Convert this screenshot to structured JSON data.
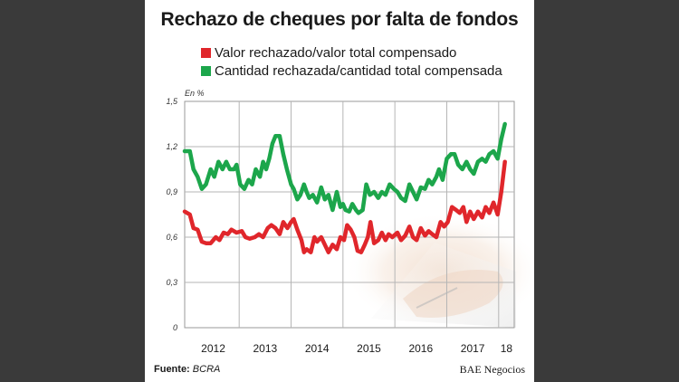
{
  "chart_data": {
    "type": "line",
    "title": "Rechazo de cheques por falta de fondos",
    "ylabel": "En %",
    "ylim": [
      0,
      1.5
    ],
    "yticks": [
      "0",
      "0,3",
      "0,6",
      "0,9",
      "1,2",
      "1,5"
    ],
    "xticks": [
      "2012",
      "2013",
      "2014",
      "2015",
      "2016",
      "2017",
      "18"
    ],
    "xlim": [
      2011.95,
      2018.3
    ],
    "grid": true,
    "legend_position": "top",
    "series": [
      {
        "name": "Valor rechazado/valor total compensado",
        "color": "#e0262b",
        "points": [
          [
            2011.95,
            0.77
          ],
          [
            2012.05,
            0.75
          ],
          [
            2012.12,
            0.66
          ],
          [
            2012.2,
            0.65
          ],
          [
            2012.28,
            0.57
          ],
          [
            2012.36,
            0.56
          ],
          [
            2012.45,
            0.56
          ],
          [
            2012.55,
            0.6
          ],
          [
            2012.62,
            0.58
          ],
          [
            2012.7,
            0.63
          ],
          [
            2012.78,
            0.62
          ],
          [
            2012.85,
            0.65
          ],
          [
            2012.95,
            0.63
          ],
          [
            2013.05,
            0.64
          ],
          [
            2013.12,
            0.6
          ],
          [
            2013.2,
            0.59
          ],
          [
            2013.3,
            0.6
          ],
          [
            2013.38,
            0.62
          ],
          [
            2013.46,
            0.6
          ],
          [
            2013.55,
            0.66
          ],
          [
            2013.62,
            0.68
          ],
          [
            2013.7,
            0.66
          ],
          [
            2013.78,
            0.62
          ],
          [
            2013.85,
            0.7
          ],
          [
            2013.93,
            0.66
          ],
          [
            2014.0,
            0.7
          ],
          [
            2014.05,
            0.72
          ],
          [
            2014.12,
            0.65
          ],
          [
            2014.2,
            0.58
          ],
          [
            2014.25,
            0.5
          ],
          [
            2014.3,
            0.52
          ],
          [
            2014.38,
            0.5
          ],
          [
            2014.45,
            0.6
          ],
          [
            2014.5,
            0.57
          ],
          [
            2014.58,
            0.6
          ],
          [
            2014.65,
            0.55
          ],
          [
            2014.72,
            0.5
          ],
          [
            2014.8,
            0.55
          ],
          [
            2014.88,
            0.52
          ],
          [
            2014.95,
            0.6
          ],
          [
            2015.02,
            0.58
          ],
          [
            2015.08,
            0.68
          ],
          [
            2015.15,
            0.65
          ],
          [
            2015.22,
            0.6
          ],
          [
            2015.28,
            0.51
          ],
          [
            2015.35,
            0.5
          ],
          [
            2015.42,
            0.55
          ],
          [
            2015.48,
            0.6
          ],
          [
            2015.53,
            0.7
          ],
          [
            2015.6,
            0.56
          ],
          [
            2015.68,
            0.58
          ],
          [
            2015.75,
            0.63
          ],
          [
            2015.82,
            0.58
          ],
          [
            2015.88,
            0.62
          ],
          [
            2015.95,
            0.6
          ],
          [
            2016.05,
            0.63
          ],
          [
            2016.12,
            0.58
          ],
          [
            2016.2,
            0.61
          ],
          [
            2016.28,
            0.67
          ],
          [
            2016.35,
            0.6
          ],
          [
            2016.42,
            0.58
          ],
          [
            2016.5,
            0.66
          ],
          [
            2016.58,
            0.61
          ],
          [
            2016.65,
            0.64
          ],
          [
            2016.72,
            0.62
          ],
          [
            2016.8,
            0.6
          ],
          [
            2016.88,
            0.7
          ],
          [
            2016.95,
            0.67
          ],
          [
            2017.02,
            0.7
          ],
          [
            2017.1,
            0.8
          ],
          [
            2017.18,
            0.78
          ],
          [
            2017.25,
            0.76
          ],
          [
            2017.32,
            0.8
          ],
          [
            2017.38,
            0.7
          ],
          [
            2017.45,
            0.77
          ],
          [
            2017.52,
            0.72
          ],
          [
            2017.6,
            0.77
          ],
          [
            2017.68,
            0.73
          ],
          [
            2017.75,
            0.8
          ],
          [
            2017.82,
            0.76
          ],
          [
            2017.9,
            0.83
          ],
          [
            2017.98,
            0.75
          ],
          [
            2018.05,
            0.9
          ],
          [
            2018.12,
            1.1
          ]
        ]
      },
      {
        "name": "Cantidad rechazada/cantidad total compensada",
        "color": "#1ca64b",
        "points": [
          [
            2011.95,
            1.17
          ],
          [
            2012.05,
            1.17
          ],
          [
            2012.12,
            1.05
          ],
          [
            2012.2,
            1.0
          ],
          [
            2012.28,
            0.92
          ],
          [
            2012.36,
            0.95
          ],
          [
            2012.45,
            1.05
          ],
          [
            2012.52,
            1.0
          ],
          [
            2012.6,
            1.1
          ],
          [
            2012.68,
            1.05
          ],
          [
            2012.75,
            1.1
          ],
          [
            2012.82,
            1.05
          ],
          [
            2012.9,
            1.05
          ],
          [
            2012.95,
            1.08
          ],
          [
            2013.02,
            0.95
          ],
          [
            2013.1,
            0.92
          ],
          [
            2013.18,
            0.98
          ],
          [
            2013.25,
            0.95
          ],
          [
            2013.32,
            1.05
          ],
          [
            2013.4,
            1.0
          ],
          [
            2013.46,
            1.1
          ],
          [
            2013.52,
            1.05
          ],
          [
            2013.58,
            1.12
          ],
          [
            2013.64,
            1.22
          ],
          [
            2013.7,
            1.27
          ],
          [
            2013.78,
            1.27
          ],
          [
            2013.85,
            1.15
          ],
          [
            2013.92,
            1.05
          ],
          [
            2014.0,
            0.95
          ],
          [
            2014.05,
            0.92
          ],
          [
            2014.12,
            0.85
          ],
          [
            2014.18,
            0.88
          ],
          [
            2014.25,
            0.95
          ],
          [
            2014.3,
            0.9
          ],
          [
            2014.35,
            0.86
          ],
          [
            2014.42,
            0.88
          ],
          [
            2014.5,
            0.83
          ],
          [
            2014.58,
            0.93
          ],
          [
            2014.65,
            0.85
          ],
          [
            2014.72,
            0.88
          ],
          [
            2014.8,
            0.78
          ],
          [
            2014.88,
            0.9
          ],
          [
            2014.95,
            0.8
          ],
          [
            2015.0,
            0.82
          ],
          [
            2015.05,
            0.78
          ],
          [
            2015.12,
            0.77
          ],
          [
            2015.18,
            0.82
          ],
          [
            2015.25,
            0.78
          ],
          [
            2015.3,
            0.76
          ],
          [
            2015.38,
            0.78
          ],
          [
            2015.45,
            0.95
          ],
          [
            2015.52,
            0.88
          ],
          [
            2015.6,
            0.9
          ],
          [
            2015.68,
            0.86
          ],
          [
            2015.75,
            0.9
          ],
          [
            2015.82,
            0.88
          ],
          [
            2015.9,
            0.95
          ],
          [
            2015.98,
            0.92
          ],
          [
            2016.05,
            0.9
          ],
          [
            2016.12,
            0.86
          ],
          [
            2016.2,
            0.84
          ],
          [
            2016.28,
            0.95
          ],
          [
            2016.35,
            0.9
          ],
          [
            2016.42,
            0.85
          ],
          [
            2016.5,
            0.93
          ],
          [
            2016.58,
            0.92
          ],
          [
            2016.65,
            0.98
          ],
          [
            2016.72,
            0.95
          ],
          [
            2016.8,
            1.0
          ],
          [
            2016.85,
            1.05
          ],
          [
            2016.92,
            0.98
          ],
          [
            2017.0,
            1.12
          ],
          [
            2017.08,
            1.15
          ],
          [
            2017.15,
            1.15
          ],
          [
            2017.22,
            1.08
          ],
          [
            2017.3,
            1.05
          ],
          [
            2017.38,
            1.1
          ],
          [
            2017.45,
            1.05
          ],
          [
            2017.52,
            1.02
          ],
          [
            2017.6,
            1.1
          ],
          [
            2017.68,
            1.12
          ],
          [
            2017.75,
            1.1
          ],
          [
            2017.82,
            1.15
          ],
          [
            2017.9,
            1.17
          ],
          [
            2017.98,
            1.12
          ],
          [
            2018.05,
            1.25
          ],
          [
            2018.12,
            1.35
          ]
        ]
      }
    ]
  },
  "footer": {
    "source_label": "Fuente:",
    "source_value": "BCRA",
    "brand": "BAE Negocios"
  }
}
